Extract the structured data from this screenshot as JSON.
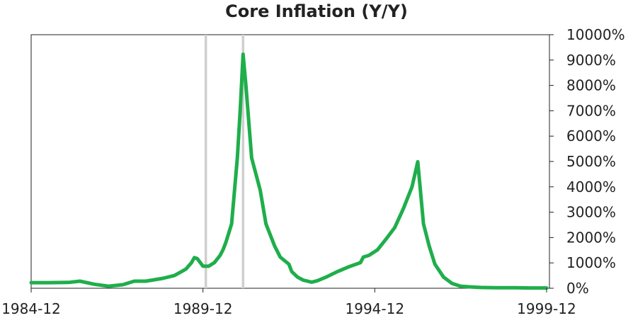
{
  "chart_data": {
    "type": "line",
    "title": "Core Inflation (Y/Y)",
    "xlabel": "",
    "ylabel": "",
    "xlim": [
      "1984-12",
      "2000-01"
    ],
    "ylim": [
      0,
      10000
    ],
    "y_ticks": [
      0,
      1000,
      2000,
      3000,
      4000,
      5000,
      6000,
      7000,
      8000,
      9000,
      10000
    ],
    "y_tick_labels": [
      "0%",
      "1000%",
      "2000%",
      "3000%",
      "4000%",
      "5000%",
      "6000%",
      "7000%",
      "8000%",
      "9000%",
      "10000%"
    ],
    "x_ticks": [
      "1984-12",
      "1989-12",
      "1994-12",
      "1999-12"
    ],
    "y_axis_side": "right",
    "grid": false,
    "legend": "none",
    "colors": {
      "line": "#1fae4b",
      "vertical_lines": "#cfcfcf"
    },
    "vertical_lines": [
      "1990-01",
      "1991-02"
    ],
    "series": [
      {
        "values": [
          [
            "1984-12",
            220
          ],
          [
            "1985-06",
            220
          ],
          [
            "1986-01",
            230
          ],
          [
            "1986-05",
            280
          ],
          [
            "1986-10",
            160
          ],
          [
            "1987-03",
            80
          ],
          [
            "1987-08",
            140
          ],
          [
            "1987-12",
            280
          ],
          [
            "1988-04",
            280
          ],
          [
            "1988-10",
            390
          ],
          [
            "1989-02",
            500
          ],
          [
            "1989-06",
            750
          ],
          [
            "1989-08",
            1010
          ],
          [
            "1989-09",
            1210
          ],
          [
            "1989-10",
            1170
          ],
          [
            "1989-12",
            870
          ],
          [
            "1990-02",
            870
          ],
          [
            "1990-04",
            1010
          ],
          [
            "1990-06",
            1300
          ],
          [
            "1990-07",
            1520
          ],
          [
            "1990-08",
            1810
          ],
          [
            "1990-10",
            2540
          ],
          [
            "1990-12",
            5140
          ],
          [
            "1991-01",
            7000
          ],
          [
            "1991-02",
            9230
          ],
          [
            "1991-03",
            8000
          ],
          [
            "1991-05",
            5140
          ],
          [
            "1991-08",
            3870
          ],
          [
            "1991-10",
            2540
          ],
          [
            "1992-01",
            1670
          ],
          [
            "1992-03",
            1230
          ],
          [
            "1992-06",
            950
          ],
          [
            "1992-07",
            660
          ],
          [
            "1992-09",
            440
          ],
          [
            "1992-11",
            320
          ],
          [
            "1993-02",
            240
          ],
          [
            "1993-04",
            300
          ],
          [
            "1993-07",
            440
          ],
          [
            "1993-11",
            660
          ],
          [
            "1994-03",
            850
          ],
          [
            "1994-07",
            1010
          ],
          [
            "1994-08",
            1230
          ],
          [
            "1994-10",
            1300
          ],
          [
            "1995-01",
            1520
          ],
          [
            "1995-04",
            1950
          ],
          [
            "1995-07",
            2400
          ],
          [
            "1995-10",
            3140
          ],
          [
            "1996-01",
            4000
          ],
          [
            "1996-03",
            4990
          ],
          [
            "1996-05",
            2540
          ],
          [
            "1996-07",
            1670
          ],
          [
            "1996-09",
            950
          ],
          [
            "1996-12",
            440
          ],
          [
            "1997-03",
            190
          ],
          [
            "1997-06",
            80
          ],
          [
            "1997-10",
            50
          ],
          [
            "1998-01",
            30
          ],
          [
            "1998-06",
            20
          ],
          [
            "1999-01",
            20
          ],
          [
            "1999-06",
            10
          ],
          [
            "1999-12",
            10
          ]
        ]
      }
    ]
  }
}
